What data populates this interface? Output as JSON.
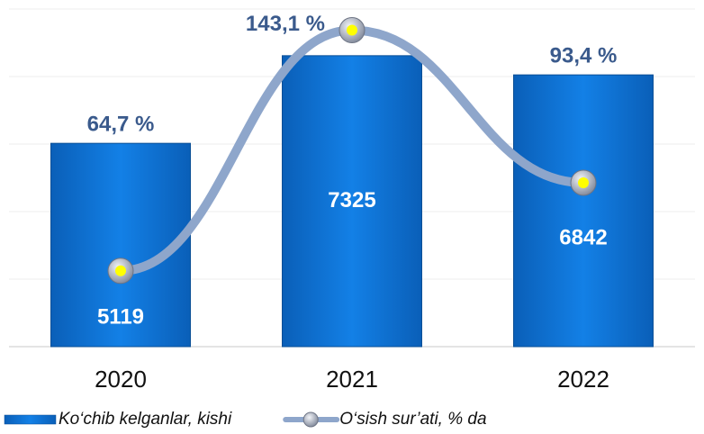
{
  "chart_data": {
    "type": "bar",
    "categories": [
      "2020",
      "2021",
      "2022"
    ],
    "series": [
      {
        "name": "Ko‘chib kelganlar, kishi",
        "type": "bar",
        "color": "#0b6fd1",
        "values": [
          5119,
          7325,
          6842
        ]
      },
      {
        "name": "O‘sish sur’ati, % da",
        "type": "line",
        "axis": "y2",
        "color": "#8ea6cb",
        "values": [
          64.7,
          143.1,
          93.4
        ],
        "value_labels": [
          "64,7 %",
          "143,1 %",
          "93,4 %"
        ]
      }
    ],
    "ylim": [
      0,
      8500
    ],
    "yticks": [
      0,
      1700,
      3400,
      5100,
      6800,
      8500
    ],
    "y2lim": [
      40,
      150
    ],
    "grid": true
  }
}
